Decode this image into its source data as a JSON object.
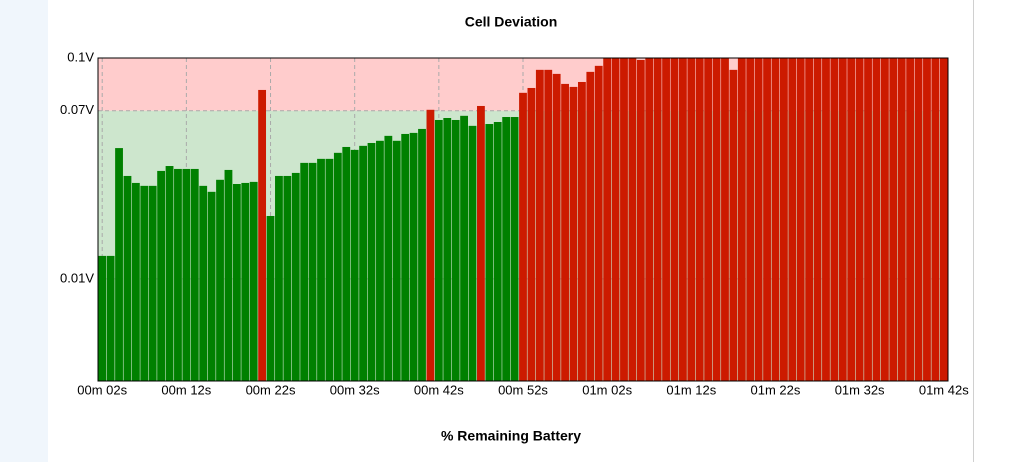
{
  "chart_data": {
    "type": "bar",
    "title": "Cell Deviation",
    "x_label": "% Remaining Battery",
    "x": [
      2,
      3,
      4,
      5,
      6,
      7,
      8,
      9,
      10,
      11,
      12,
      13,
      14,
      15,
      16,
      17,
      18,
      19,
      20,
      21,
      22,
      23,
      24,
      25,
      26,
      27,
      28,
      29,
      30,
      31,
      32,
      33,
      34,
      35,
      36,
      37,
      38,
      39,
      40,
      41,
      42,
      43,
      44,
      45,
      46,
      47,
      48,
      49,
      50,
      51,
      52,
      53,
      54,
      55,
      56,
      57,
      58,
      59,
      60,
      61,
      62,
      63,
      64,
      65,
      66,
      67,
      68,
      69,
      70,
      71,
      72,
      73,
      74,
      75,
      76,
      77,
      78,
      79,
      80,
      81,
      82,
      83,
      84,
      85,
      86,
      87,
      88,
      89,
      90,
      91,
      92,
      93,
      94,
      95,
      96,
      97,
      98,
      99,
      100,
      101,
      102
    ],
    "values": [
      0.015,
      0.015,
      0.052,
      0.0403,
      0.0376,
      0.0365,
      0.0365,
      0.0423,
      0.0443,
      0.0431,
      0.0431,
      0.0431,
      0.0365,
      0.0343,
      0.0388,
      0.0427,
      0.0372,
      0.0376,
      0.038,
      0.0812,
      0.0261,
      0.0403,
      0.0403,
      0.0415,
      0.0456,
      0.0456,
      0.0473,
      0.0473,
      0.0499,
      0.0525,
      0.0512,
      0.053,
      0.0543,
      0.0553,
      0.0576,
      0.0553,
      0.0585,
      0.059,
      0.0609,
      0.0705,
      0.0653,
      0.0663,
      0.0653,
      0.0674,
      0.0624,
      0.0725,
      0.0633,
      0.0643,
      0.0668,
      0.0668,
      0.0796,
      0.0823,
      0.0928,
      0.0928,
      0.0904,
      0.0846,
      0.0829,
      0.0857,
      0.0916,
      0.0952,
      0.1,
      0.1,
      0.1,
      0.1,
      0.0988,
      0.1,
      0.1,
      0.1,
      0.1,
      0.1,
      0.1,
      0.1,
      0.1,
      0.1,
      0.1,
      0.0928,
      0.1,
      0.1,
      0.1,
      0.1,
      0.1,
      0.1,
      0.1,
      0.1,
      0.1,
      0.1,
      0.1,
      0.1,
      0.1,
      0.1,
      0.1,
      0.1,
      0.1,
      0.1,
      0.1,
      0.1,
      0.1,
      0.1,
      0.1,
      0.1,
      0.1
    ],
    "threshold": 0.07,
    "below_color": "#008000",
    "above_color": "#cc1a00",
    "below_zone_color": "#cde6cd",
    "above_zone_color": "#ffcccc",
    "y_scale": "sqrt",
    "ylim": [
      0,
      0.1
    ],
    "yticks": [
      {
        "value": 0.01,
        "label": "0.01V"
      },
      {
        "value": 0.07,
        "label": "0.07V"
      },
      {
        "value": 0.1,
        "label": "0.1V"
      }
    ],
    "xlim": [
      1.5,
      102.5
    ],
    "xticks": [
      {
        "value": 2,
        "label": "00m 02s"
      },
      {
        "value": 12,
        "label": "00m 12s"
      },
      {
        "value": 22,
        "label": "00m 22s"
      },
      {
        "value": 32,
        "label": "00m 32s"
      },
      {
        "value": 42,
        "label": "00m 42s"
      },
      {
        "value": 52,
        "label": "00m 52s"
      },
      {
        "value": 62,
        "label": "01m 02s"
      },
      {
        "value": 72,
        "label": "01m 12s"
      },
      {
        "value": 82,
        "label": "01m 22s"
      },
      {
        "value": 92,
        "label": "01m 32s"
      },
      {
        "value": 102,
        "label": "01m 42s"
      }
    ],
    "grid": true
  }
}
